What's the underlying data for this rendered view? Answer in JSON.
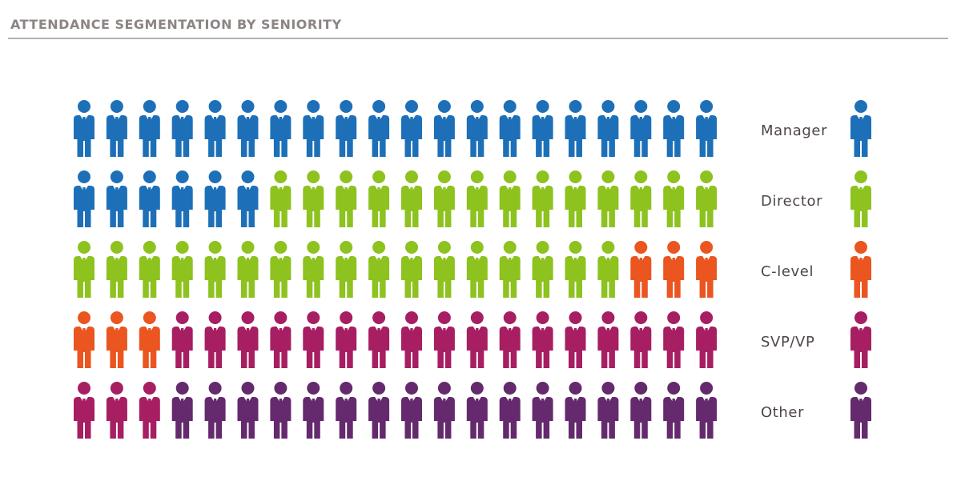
{
  "title": "ATTENDANCE SEGMENTATION BY SENIORITY",
  "chart_data": {
    "type": "pictograph",
    "rows": 5,
    "icons_per_row": 20,
    "series": [
      {
        "name": "Manager",
        "count": 26,
        "color": "#1d70b8"
      },
      {
        "name": "Director",
        "count": 31,
        "color": "#8dc21f"
      },
      {
        "name": "C-level",
        "count": 6,
        "color": "#ea5520"
      },
      {
        "name": "SVP/VP",
        "count": 20,
        "color": "#a71e62"
      },
      {
        "name": "Other",
        "count": 17,
        "color": "#642a6d"
      }
    ]
  }
}
